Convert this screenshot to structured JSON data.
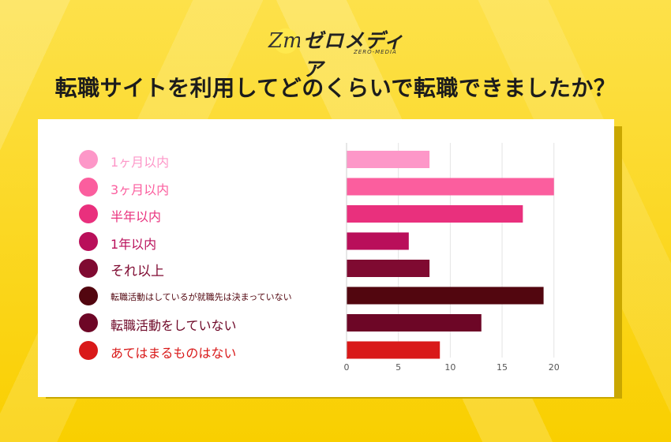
{
  "logo": {
    "text": "ゼロメディア",
    "sub": "ZERO-MEDIA",
    "mark": "Zm"
  },
  "headline": "転職サイトを利用してどのくらいで転職できましたか？",
  "chart_data": {
    "type": "bar",
    "orientation": "horizontal",
    "categories": [
      "1ヶ月以内",
      "3ヶ月以内",
      "半年以内",
      "1年以内",
      "それ以上",
      "転職活動はしているが就職先は決まっていない",
      "転職活動をしていない",
      "あてはまるものはない"
    ],
    "values": [
      8,
      20,
      17,
      6,
      8,
      19,
      13,
      9
    ],
    "colors": [
      "#fd97c8",
      "#fb5e9e",
      "#e9307d",
      "#b90f5a",
      "#7f0a31",
      "#52060f",
      "#6d0626",
      "#d91919"
    ],
    "xlim": [
      0,
      22
    ],
    "xticks": [
      "0",
      "5",
      "10",
      "15",
      "20"
    ],
    "grid": true,
    "legend": "left"
  }
}
